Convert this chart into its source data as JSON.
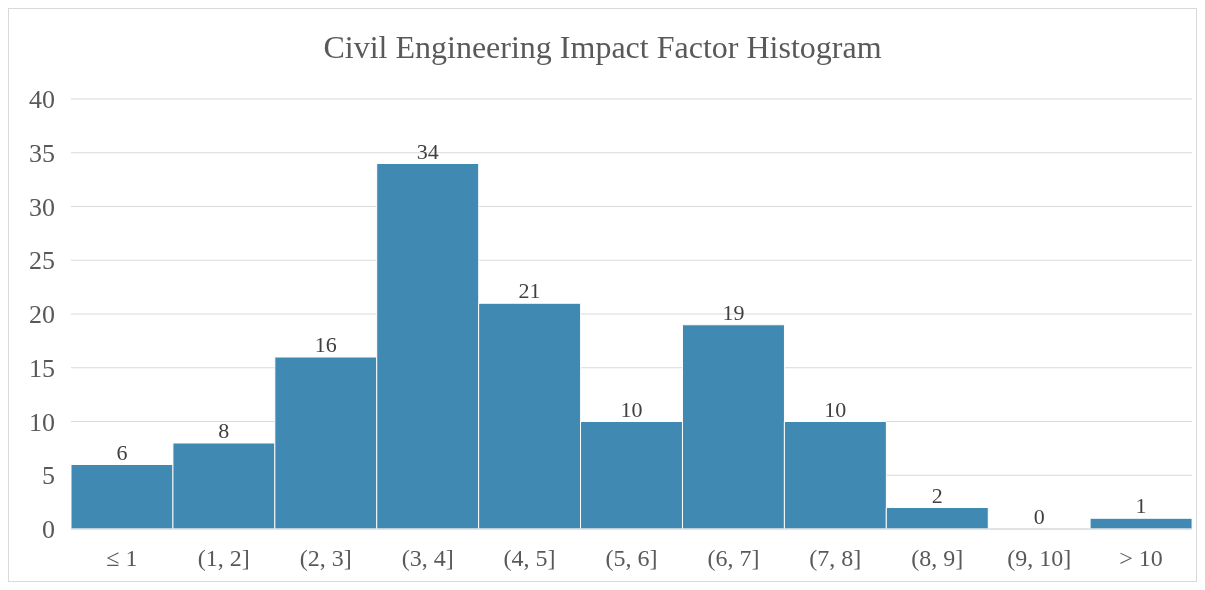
{
  "chart_data": {
    "type": "bar",
    "title": "Civil Engineering Impact Factor Histogram",
    "categories": [
      "≤ 1",
      "(1, 2]",
      "(2, 3]",
      "(3, 4]",
      "(4, 5]",
      "(5, 6]",
      "(6, 7]",
      "(7, 8]",
      "(8, 9]",
      "(9, 10]",
      "> 10"
    ],
    "values": [
      6,
      8,
      16,
      34,
      21,
      10,
      19,
      10,
      2,
      0,
      1
    ],
    "color": "#3f89b3",
    "ylim": [
      0,
      40
    ],
    "yticks": [
      0,
      5,
      10,
      15,
      20,
      25,
      30,
      35,
      40
    ],
    "grid": "y",
    "data_labels": true
  }
}
